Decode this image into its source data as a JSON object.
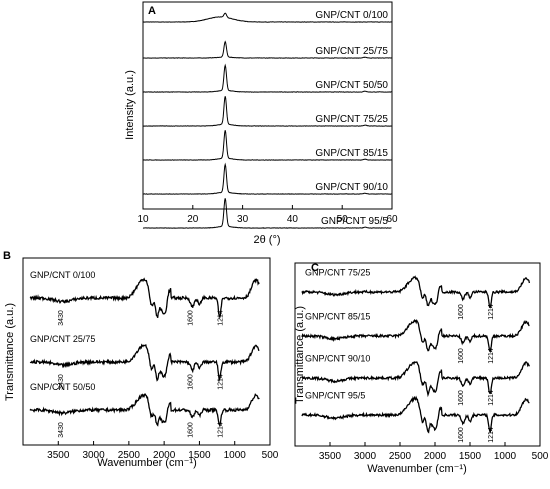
{
  "chart_data": [
    {
      "panel": "A",
      "type": "line",
      "xlabel": "2θ (°)",
      "ylabel": "Intensity (a.u.)",
      "xlim": [
        10,
        60
      ],
      "xticks": [
        10,
        20,
        30,
        40,
        50,
        60
      ],
      "peak_2theta": 26.5,
      "series": [
        {
          "name": "GNP/CNT 0/100",
          "peak_height": 0.15
        },
        {
          "name": "GNP/CNT 25/75",
          "peak_height": 0.55
        },
        {
          "name": "GNP/CNT 50/50",
          "peak_height": 0.9
        },
        {
          "name": "GNP/CNT 75/25",
          "peak_height": 1.0
        },
        {
          "name": "GNP/CNT 85/15",
          "peak_height": 1.0
        },
        {
          "name": "GNP/CNT 90/10",
          "peak_height": 1.0
        },
        {
          "name": "GNP/CNT 95/5",
          "peak_height": 1.0
        }
      ]
    },
    {
      "panel": "B",
      "type": "line",
      "xlabel": "Wavenumber (cm⁻¹)",
      "ylabel": "Transmittance (a.u.)",
      "xlim": [
        4000,
        500
      ],
      "xticks": [
        3500,
        3000,
        2500,
        2000,
        1500,
        1000,
        500
      ],
      "series": [
        {
          "name": "GNP/CNT 0/100",
          "annotations": [
            "3430",
            "1600",
            "1214"
          ]
        },
        {
          "name": "GNP/CNT 25/75",
          "annotations": [
            "3430",
            "1600",
            "1214"
          ]
        },
        {
          "name": "GNP/CNT 50/50",
          "annotations": [
            "3430",
            "1600",
            "1214"
          ]
        }
      ]
    },
    {
      "panel": "C",
      "type": "line",
      "xlabel": "Wavenumber (cm⁻¹)",
      "ylabel": "Transmittance (a.u.)",
      "xlim": [
        4000,
        500
      ],
      "xticks": [
        3500,
        3000,
        2500,
        2000,
        1500,
        1000,
        500
      ],
      "series": [
        {
          "name": "GNP/CNT 75/25",
          "annotations": [
            "1600",
            "1214"
          ]
        },
        {
          "name": "GNP/CNT 85/15",
          "annotations": [
            "1600",
            "1214"
          ]
        },
        {
          "name": "GNP/CNT 90/10",
          "annotations": [
            "1600",
            "1214"
          ]
        },
        {
          "name": "GNP/CNT 95/5",
          "annotations": [
            "1600",
            "1214"
          ]
        }
      ]
    }
  ]
}
